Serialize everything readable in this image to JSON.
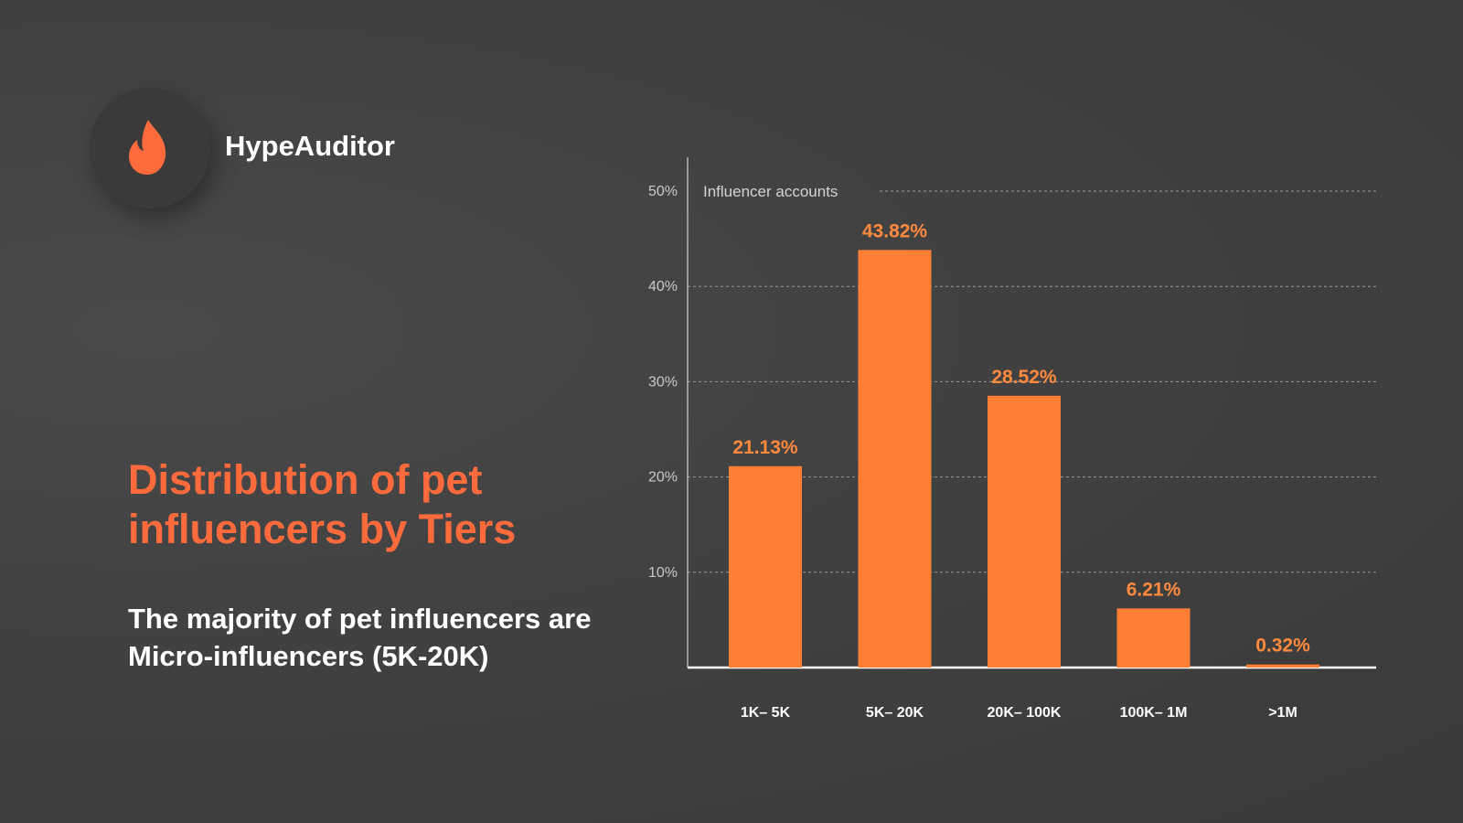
{
  "brand": {
    "name": "HypeAuditor",
    "icon": "flame-icon",
    "accent_color": "#fd6b3d"
  },
  "headline": "Distribution of pet influencers by Tiers",
  "subtitle": "The majority of pet influencers are Micro-influencers (5K-20K)",
  "chart_data": {
    "type": "bar",
    "title": "Influencer accounts",
    "categories": [
      "1K– 5K",
      "5K– 20K",
      "20K– 100K",
      "100K– 1M",
      ">1M"
    ],
    "values": [
      21.13,
      43.82,
      28.52,
      6.21,
      0.32
    ],
    "value_labels": [
      "21.13%",
      "43.82%",
      "28.52%",
      "6.21%",
      "0.32%"
    ],
    "yticks": [
      10,
      20,
      30,
      40,
      50
    ],
    "ytick_labels": [
      "10%",
      "20%",
      "30%",
      "40%",
      "50%"
    ],
    "ylim": [
      0,
      50
    ],
    "grid": true,
    "bar_color": "#ff7f35",
    "label_color": "#ff8a3d"
  }
}
